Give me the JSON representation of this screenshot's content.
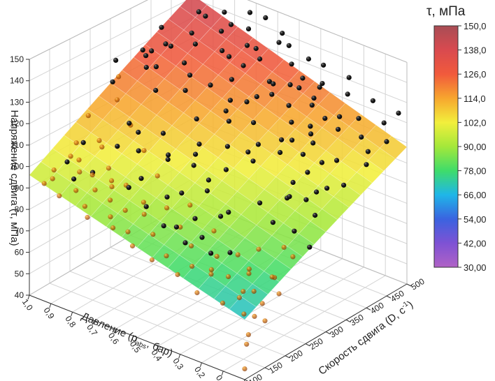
{
  "chart_data": {
    "type": "scatter",
    "surface": true,
    "view": "3d",
    "axes": {
      "x": {
        "label": "Давление (p",
        "label_sub": "abs",
        "label_tail": ", бар)",
        "range": [
          0.0,
          1.0
        ],
        "ticks": [
          "0,0",
          "0,1",
          "0,2",
          "0,3",
          "0,4",
          "0,5",
          "0,6",
          "0,7",
          "0,8",
          "0,9",
          "1,0"
        ]
      },
      "y": {
        "label": "Скорость сдвига (D, c",
        "label_sup": "-1",
        "label_tail": ")",
        "range": [
          100,
          500
        ],
        "ticks": [
          "100",
          "150",
          "200",
          "250",
          "300",
          "350",
          "400",
          "450",
          "500"
        ]
      },
      "z": {
        "label": "Напряжение сдвига (τ, мПа)",
        "range": [
          40,
          150
        ],
        "ticks": [
          "40",
          "50",
          "60",
          "70",
          "80",
          "90",
          "100",
          "110",
          "120",
          "130",
          "140",
          "150"
        ]
      }
    },
    "colorbar": {
      "title": "τ, мПа",
      "range": [
        30,
        150
      ],
      "ticks": [
        "150,0",
        "138,0",
        "126,0",
        "114,0",
        "102,0",
        "90,00",
        "78,00",
        "66,00",
        "54,00",
        "42,00",
        "30,00"
      ]
    },
    "colors": {
      "points": "#111111",
      "grid": "#d4d4d4",
      "axes": "#333333"
    },
    "grid": true,
    "surface_corners": [
      {
        "p": 1.0,
        "D": 100,
        "tau": 96
      },
      {
        "p": 0.0,
        "D": 100,
        "tau": 68
      },
      {
        "p": 0.0,
        "D": 500,
        "tau": 108
      },
      {
        "p": 1.0,
        "D": 500,
        "tau": 142
      }
    ],
    "points": [
      [
        0.95,
        110,
        93
      ],
      [
        0.93,
        120,
        95
      ],
      [
        0.9,
        140,
        102
      ],
      [
        0.88,
        160,
        96
      ],
      [
        0.9,
        180,
        107
      ],
      [
        0.85,
        130,
        97
      ],
      [
        0.8,
        150,
        100
      ],
      [
        0.78,
        200,
        108
      ],
      [
        0.75,
        170,
        96
      ],
      [
        0.72,
        220,
        115
      ],
      [
        0.7,
        140,
        92
      ],
      [
        0.68,
        260,
        112
      ],
      [
        0.65,
        190,
        99
      ],
      [
        0.62,
        240,
        104
      ],
      [
        0.6,
        300,
        118
      ],
      [
        0.58,
        160,
        88
      ],
      [
        0.55,
        280,
        110
      ],
      [
        0.52,
        330,
        122
      ],
      [
        0.5,
        210,
        96
      ],
      [
        0.48,
        360,
        125
      ],
      [
        0.45,
        250,
        100
      ],
      [
        0.42,
        390,
        128
      ],
      [
        0.4,
        190,
        90
      ],
      [
        0.38,
        310,
        110
      ],
      [
        0.35,
        420,
        131
      ],
      [
        0.32,
        230,
        92
      ],
      [
        0.3,
        350,
        115
      ],
      [
        0.28,
        440,
        134
      ],
      [
        0.25,
        270,
        95
      ],
      [
        0.22,
        380,
        118
      ],
      [
        0.2,
        460,
        130
      ],
      [
        0.18,
        300,
        97
      ],
      [
        0.15,
        410,
        120
      ],
      [
        0.12,
        480,
        128
      ],
      [
        0.1,
        330,
        100
      ],
      [
        0.08,
        430,
        117
      ],
      [
        0.05,
        470,
        121
      ],
      [
        0.03,
        360,
        103
      ],
      [
        0.02,
        490,
        125
      ],
      [
        0.0,
        400,
        110
      ],
      [
        0.9,
        260,
        138
      ],
      [
        0.85,
        300,
        141
      ],
      [
        0.8,
        330,
        143
      ],
      [
        0.75,
        280,
        139
      ],
      [
        0.7,
        350,
        145
      ],
      [
        0.65,
        310,
        136
      ],
      [
        0.6,
        380,
        140
      ],
      [
        0.55,
        420,
        142
      ],
      [
        0.5,
        450,
        144
      ],
      [
        0.45,
        400,
        132
      ],
      [
        0.4,
        470,
        138
      ],
      [
        0.35,
        480,
        136
      ],
      [
        0.3,
        430,
        127
      ],
      [
        0.25,
        490,
        133
      ],
      [
        0.2,
        440,
        121
      ],
      [
        0.15,
        370,
        108
      ],
      [
        0.1,
        250,
        82
      ],
      [
        0.05,
        200,
        75
      ],
      [
        0.0,
        150,
        62
      ],
      [
        0.02,
        120,
        58
      ],
      [
        0.05,
        170,
        66
      ],
      [
        0.08,
        210,
        73
      ],
      [
        0.12,
        160,
        70
      ],
      [
        0.15,
        190,
        74
      ],
      [
        0.18,
        230,
        80
      ],
      [
        0.22,
        200,
        79
      ],
      [
        0.25,
        150,
        74
      ],
      [
        0.28,
        180,
        78
      ],
      [
        0.32,
        140,
        76
      ],
      [
        0.35,
        210,
        84
      ],
      [
        0.38,
        170,
        80
      ],
      [
        0.42,
        130,
        78
      ],
      [
        0.45,
        180,
        85
      ],
      [
        0.48,
        220,
        90
      ],
      [
        0.52,
        150,
        82
      ],
      [
        0.55,
        200,
        88
      ],
      [
        0.58,
        120,
        84
      ],
      [
        0.62,
        180,
        90
      ],
      [
        0.65,
        230,
        96
      ],
      [
        0.68,
        130,
        86
      ],
      [
        0.72,
        190,
        93
      ],
      [
        0.75,
        250,
        102
      ],
      [
        0.78,
        120,
        88
      ],
      [
        0.82,
        200,
        96
      ],
      [
        0.85,
        270,
        108
      ],
      [
        0.88,
        110,
        90
      ],
      [
        0.92,
        230,
        102
      ],
      [
        0.95,
        290,
        114
      ],
      [
        0.98,
        150,
        94
      ],
      [
        1.0,
        320,
        120
      ],
      [
        0.6,
        470,
        150
      ],
      [
        0.55,
        360,
        133
      ],
      [
        0.5,
        330,
        128
      ],
      [
        0.45,
        300,
        123
      ],
      [
        0.4,
        270,
        116
      ],
      [
        0.35,
        240,
        110
      ],
      [
        0.3,
        280,
        112
      ],
      [
        0.25,
        320,
        114
      ],
      [
        0.2,
        350,
        112
      ],
      [
        0.15,
        290,
        100
      ],
      [
        0.1,
        380,
        110
      ],
      [
        0.05,
        300,
        94
      ],
      [
        0.0,
        260,
        85
      ],
      [
        0.0,
        450,
        116
      ],
      [
        0.03,
        420,
        113
      ],
      [
        0.07,
        340,
        102
      ],
      [
        0.13,
        450,
        122
      ],
      [
        0.17,
        260,
        90
      ],
      [
        0.23,
        420,
        121
      ],
      [
        0.27,
        360,
        115
      ],
      [
        0.33,
        460,
        128
      ],
      [
        0.37,
        330,
        112
      ],
      [
        0.43,
        350,
        118
      ],
      [
        0.47,
        420,
        128
      ],
      [
        0.53,
        260,
        108
      ],
      [
        0.57,
        440,
        134
      ],
      [
        0.63,
        350,
        128
      ],
      [
        0.67,
        400,
        138
      ],
      [
        0.73,
        430,
        142
      ],
      [
        0.77,
        360,
        132
      ],
      [
        0.83,
        410,
        139
      ],
      [
        0.87,
        380,
        134
      ],
      [
        0.93,
        350,
        130
      ],
      [
        0.97,
        410,
        136
      ],
      [
        0.8,
        240,
        114
      ],
      [
        0.7,
        210,
        108
      ],
      [
        0.6,
        230,
        108
      ],
      [
        0.5,
        240,
        106
      ],
      [
        0.4,
        220,
        100
      ],
      [
        0.3,
        200,
        94
      ],
      [
        0.2,
        170,
        84
      ],
      [
        0.1,
        140,
        70
      ],
      [
        0.06,
        130,
        65
      ],
      [
        0.14,
        120,
        68
      ],
      [
        0.24,
        110,
        70
      ],
      [
        0.34,
        115,
        74
      ],
      [
        0.44,
        105,
        78
      ],
      [
        0.54,
        110,
        80
      ],
      [
        0.64,
        115,
        84
      ],
      [
        0.74,
        105,
        86
      ],
      [
        0.84,
        130,
        92
      ],
      [
        0.94,
        170,
        100
      ],
      [
        0.99,
        240,
        110
      ],
      [
        0.96,
        380,
        128
      ],
      [
        0.91,
        470,
        140
      ],
      [
        0.86,
        460,
        141
      ],
      [
        0.81,
        480,
        143
      ],
      [
        0.76,
        470,
        140
      ],
      [
        0.71,
        490,
        146
      ],
      [
        0.66,
        460,
        143
      ],
      [
        0.61,
        430,
        140
      ],
      [
        0.56,
        490,
        142
      ],
      [
        0.51,
        480,
        139
      ],
      [
        0.46,
        460,
        134
      ],
      [
        0.41,
        430,
        129
      ],
      [
        0.36,
        400,
        124
      ],
      [
        0.31,
        380,
        120
      ],
      [
        0.26,
        400,
        118
      ],
      [
        0.21,
        380,
        114
      ],
      [
        0.16,
        340,
        106
      ],
      [
        0.11,
        310,
        98
      ],
      [
        0.04,
        240,
        81
      ],
      [
        0.01,
        190,
        70
      ],
      [
        0.09,
        270,
        88
      ],
      [
        0.19,
        320,
        102
      ],
      [
        0.29,
        420,
        125
      ],
      [
        0.39,
        450,
        131
      ],
      [
        0.49,
        390,
        124
      ],
      [
        0.59,
        410,
        133
      ],
      [
        0.69,
        320,
        126
      ],
      [
        0.79,
        300,
        124
      ],
      [
        0.89,
        330,
        128
      ],
      [
        0.99,
        300,
        120
      ],
      [
        0.97,
        200,
        102
      ],
      [
        0.92,
        180,
        98
      ],
      [
        0.87,
        210,
        103
      ],
      [
        0.82,
        160,
        97
      ],
      [
        0.77,
        140,
        94
      ],
      [
        0.73,
        160,
        95
      ],
      [
        0.67,
        170,
        96
      ],
      [
        0.63,
        140,
        90
      ],
      [
        0.57,
        160,
        92
      ],
      [
        0.53,
        190,
        95
      ],
      [
        0.47,
        150,
        88
      ],
      [
        0.43,
        160,
        88
      ],
      [
        0.37,
        150,
        84
      ],
      [
        0.33,
        170,
        86
      ],
      [
        0.27,
        160,
        82
      ],
      [
        0.23,
        140,
        78
      ],
      [
        0.17,
        150,
        76
      ],
      [
        0.13,
        180,
        78
      ],
      [
        0.07,
        160,
        72
      ],
      [
        0.03,
        140,
        64
      ],
      [
        0.01,
        110,
        55
      ],
      [
        0.0,
        100,
        45
      ]
    ]
  }
}
